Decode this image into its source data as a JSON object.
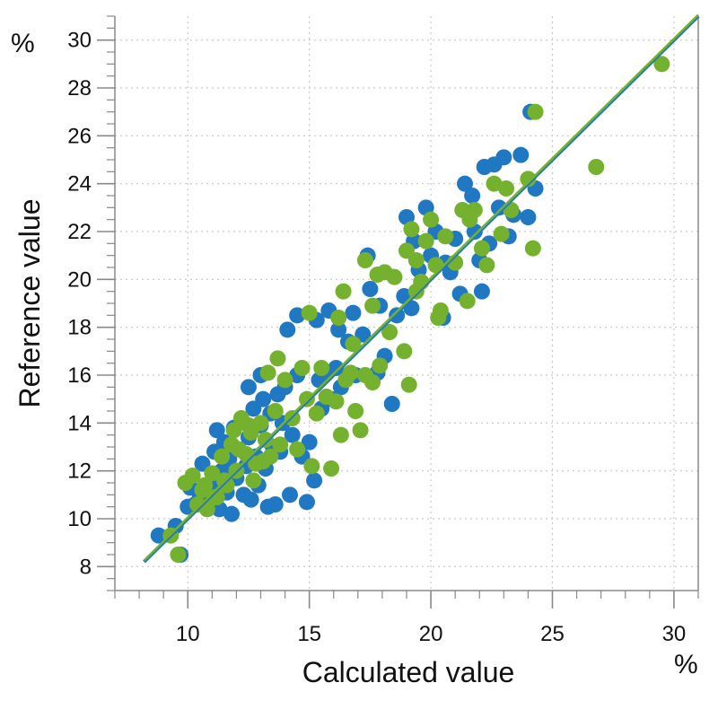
{
  "chart_data": {
    "type": "scatter",
    "xlabel": "Calculated value",
    "ylabel": "Reference value",
    "x_unit": "%",
    "y_unit": "%",
    "xlim": [
      7,
      31
    ],
    "ylim": [
      7,
      31
    ],
    "x_ticks": [
      10,
      15,
      20,
      25,
      30
    ],
    "y_ticks": [
      8,
      10,
      12,
      14,
      16,
      18,
      20,
      22,
      24,
      26,
      28,
      30
    ],
    "grid": true,
    "colors": {
      "blue": "#1f78c1",
      "green": "#74b12f",
      "axis": "#888888",
      "grid": "#c8c8c8"
    },
    "series": [
      {
        "color": "#1f78c1",
        "values": [
          [
            8.8,
            9.3
          ],
          [
            9.5,
            9.7
          ],
          [
            9.7,
            8.5
          ],
          [
            10.0,
            10.5
          ],
          [
            10.1,
            11.3
          ],
          [
            10.3,
            10.6
          ],
          [
            10.5,
            11.0
          ],
          [
            10.6,
            12.3
          ],
          [
            10.8,
            10.5
          ],
          [
            11.0,
            11.5
          ],
          [
            11.1,
            12.8
          ],
          [
            11.2,
            13.7
          ],
          [
            11.3,
            10.4
          ],
          [
            11.4,
            12.0
          ],
          [
            11.5,
            13.2
          ],
          [
            11.6,
            11.1
          ],
          [
            11.7,
            12.5
          ],
          [
            11.8,
            10.2
          ],
          [
            11.9,
            13.8
          ],
          [
            12.0,
            11.7
          ],
          [
            12.1,
            12.9
          ],
          [
            12.2,
            14.1
          ],
          [
            12.3,
            11.0
          ],
          [
            12.4,
            12.2
          ],
          [
            12.5,
            13.4
          ],
          [
            12.6,
            10.8
          ],
          [
            12.7,
            14.6
          ],
          [
            12.8,
            12.6
          ],
          [
            12.9,
            11.4
          ],
          [
            13.0,
            13.9
          ],
          [
            13.1,
            15.0
          ],
          [
            13.2,
            12.1
          ],
          [
            13.3,
            10.5
          ],
          [
            13.4,
            14.4
          ],
          [
            13.5,
            13.0
          ],
          [
            13.6,
            10.6
          ],
          [
            13.7,
            15.2
          ],
          [
            13.8,
            12.8
          ],
          [
            13.9,
            14.0
          ],
          [
            14.0,
            15.5
          ],
          [
            14.2,
            11.0
          ],
          [
            14.3,
            13.5
          ],
          [
            14.5,
            16.0
          ],
          [
            14.7,
            12.6
          ],
          [
            14.9,
            10.7
          ],
          [
            15.0,
            13.2
          ],
          [
            15.2,
            11.6
          ],
          [
            15.4,
            15.8
          ],
          [
            15.5,
            14.6
          ],
          [
            15.7,
            16.1
          ],
          [
            15.9,
            15.0
          ],
          [
            16.1,
            16.3
          ],
          [
            16.3,
            15.5
          ],
          [
            16.6,
            17.4
          ],
          [
            16.9,
            16.0
          ],
          [
            17.2,
            17.7
          ],
          [
            17.5,
            19.6
          ],
          [
            17.8,
            16.1
          ],
          [
            18.1,
            16.8
          ],
          [
            18.4,
            14.8
          ],
          [
            14.1,
            17.9
          ],
          [
            14.5,
            18.5
          ],
          [
            15.3,
            18.3
          ],
          [
            15.8,
            18.7
          ],
          [
            16.2,
            17.9
          ],
          [
            16.8,
            18.6
          ],
          [
            17.4,
            21.0
          ],
          [
            17.9,
            18.9
          ],
          [
            18.6,
            18.5
          ],
          [
            18.9,
            19.3
          ],
          [
            19.0,
            22.6
          ],
          [
            19.3,
            21.6
          ],
          [
            19.5,
            20.4
          ],
          [
            19.8,
            23.0
          ],
          [
            20.0,
            21.0
          ],
          [
            20.2,
            22.0
          ],
          [
            20.6,
            20.7
          ],
          [
            20.8,
            20.3
          ],
          [
            21.0,
            21.7
          ],
          [
            21.2,
            19.4
          ],
          [
            21.4,
            24.0
          ],
          [
            21.7,
            23.5
          ],
          [
            21.8,
            22.0
          ],
          [
            22.0,
            20.8
          ],
          [
            22.2,
            24.7
          ],
          [
            22.4,
            21.5
          ],
          [
            22.6,
            24.8
          ],
          [
            22.8,
            23.0
          ],
          [
            23.0,
            25.1
          ],
          [
            23.2,
            21.8
          ],
          [
            23.4,
            22.7
          ],
          [
            23.7,
            25.2
          ],
          [
            24.0,
            22.6
          ],
          [
            24.1,
            27.0
          ],
          [
            24.3,
            23.8
          ],
          [
            22.1,
            19.5
          ],
          [
            20.5,
            18.4
          ],
          [
            19.2,
            18.8
          ],
          [
            13.0,
            16.0
          ],
          [
            12.5,
            15.5
          ]
        ]
      },
      {
        "color": "#74b12f",
        "values": [
          [
            9.3,
            9.3
          ],
          [
            9.6,
            8.5
          ],
          [
            9.9,
            11.5
          ],
          [
            10.2,
            11.8
          ],
          [
            10.4,
            10.6
          ],
          [
            10.6,
            11.2
          ],
          [
            10.8,
            10.4
          ],
          [
            11.0,
            11.9
          ],
          [
            11.2,
            10.9
          ],
          [
            11.4,
            12.6
          ],
          [
            11.6,
            11.4
          ],
          [
            11.8,
            13.1
          ],
          [
            12.0,
            12.0
          ],
          [
            12.2,
            14.2
          ],
          [
            12.4,
            12.7
          ],
          [
            12.6,
            13.6
          ],
          [
            12.8,
            12.3
          ],
          [
            13.0,
            14.0
          ],
          [
            13.2,
            13.3
          ],
          [
            13.4,
            12.6
          ],
          [
            13.6,
            14.5
          ],
          [
            13.8,
            13.1
          ],
          [
            14.0,
            15.8
          ],
          [
            14.3,
            14.2
          ],
          [
            14.5,
            12.9
          ],
          [
            14.7,
            16.3
          ],
          [
            14.9,
            15.0
          ],
          [
            15.1,
            12.2
          ],
          [
            15.3,
            14.4
          ],
          [
            15.5,
            16.3
          ],
          [
            15.7,
            15.1
          ],
          [
            15.9,
            12.1
          ],
          [
            16.1,
            14.9
          ],
          [
            16.3,
            13.5
          ],
          [
            16.5,
            15.8
          ],
          [
            16.7,
            16.1
          ],
          [
            16.9,
            14.5
          ],
          [
            17.1,
            13.7
          ],
          [
            17.3,
            16.0
          ],
          [
            17.6,
            15.7
          ],
          [
            17.9,
            16.4
          ],
          [
            13.7,
            16.7
          ],
          [
            13.3,
            16.1
          ],
          [
            15.0,
            18.6
          ],
          [
            16.2,
            18.4
          ],
          [
            16.4,
            19.5
          ],
          [
            16.8,
            17.3
          ],
          [
            17.3,
            20.8
          ],
          [
            17.6,
            18.9
          ],
          [
            17.8,
            20.2
          ],
          [
            18.1,
            20.3
          ],
          [
            18.3,
            17.8
          ],
          [
            18.9,
            17.0
          ],
          [
            19.1,
            15.6
          ],
          [
            19.0,
            21.2
          ],
          [
            19.2,
            22.1
          ],
          [
            19.4,
            20.8
          ],
          [
            19.6,
            19.9
          ],
          [
            19.8,
            21.6
          ],
          [
            20.0,
            22.5
          ],
          [
            20.2,
            20.6
          ],
          [
            20.4,
            18.7
          ],
          [
            20.6,
            21.8
          ],
          [
            21.0,
            20.7
          ],
          [
            21.3,
            22.9
          ],
          [
            21.5,
            19.1
          ],
          [
            21.6,
            22.5
          ],
          [
            21.8,
            22.9
          ],
          [
            22.1,
            21.3
          ],
          [
            22.3,
            20.6
          ],
          [
            22.6,
            24.0
          ],
          [
            22.9,
            21.9
          ],
          [
            23.1,
            23.8
          ],
          [
            23.3,
            22.9
          ],
          [
            24.0,
            24.2
          ],
          [
            24.2,
            21.3
          ],
          [
            24.3,
            27.0
          ],
          [
            26.8,
            24.7
          ],
          [
            29.5,
            29.0
          ],
          [
            20.3,
            18.4
          ],
          [
            19.4,
            19.5
          ],
          [
            18.5,
            20.1
          ],
          [
            11.1,
            10.9
          ],
          [
            11.5,
            11.6
          ],
          [
            12.1,
            12.9
          ],
          [
            12.7,
            11.6
          ],
          [
            13.1,
            12.4
          ],
          [
            10.7,
            11.4
          ],
          [
            11.9,
            13.7
          ],
          [
            12.5,
            13.9
          ]
        ]
      }
    ],
    "fit_line": {
      "from": [
        8.2,
        8.2
      ],
      "to": [
        31,
        31
      ]
    }
  }
}
